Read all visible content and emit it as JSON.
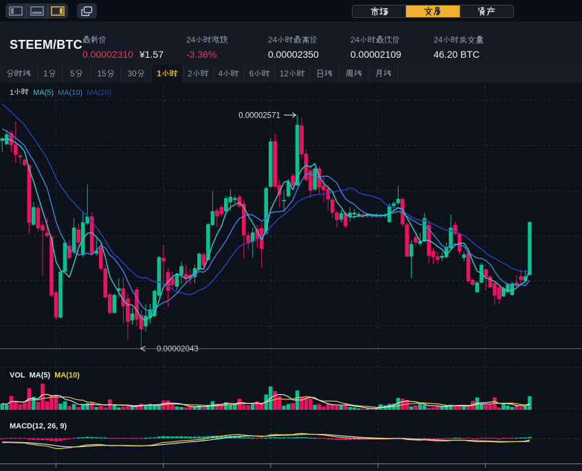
{
  "app": {
    "title": "STEEM/BTC",
    "colors": {
      "up": "#0cbf8d",
      "down": "#ee1160",
      "accent_yellow": "#f0b42c",
      "seg_selected_bg": "#f0b02f",
      "ma5": "#2fc7cd",
      "ma10": "#3e7de0",
      "ma20": "#2443bd",
      "vol_ma5": "#e2e6ef",
      "vol_ma10": "#e6d24a",
      "red_text": "#e8365c"
    }
  },
  "topbar": {
    "layout_buttons": [
      {
        "icon": "layout-left-bar-icon",
        "selected": false
      },
      {
        "icon": "layout-bottom-bar-icon",
        "selected": false
      },
      {
        "icon": "layout-right-bar-icon",
        "selected": true
      }
    ],
    "windows_button_icon": "multi-window-icon",
    "nav_tabs": [
      {
        "label": "市场",
        "selected": false
      },
      {
        "label": "交易",
        "selected": true
      },
      {
        "label": "资产",
        "selected": false
      }
    ]
  },
  "header": {
    "symbol": "STEEM/BTC",
    "stats": [
      {
        "label": "最新价",
        "value": "0.00002310",
        "value2": "¥1.57",
        "color": "red"
      },
      {
        "label": "24小时涨跌",
        "value": "-3.36%",
        "color": "red"
      },
      {
        "label": "24小时最高价",
        "value": "0.00002350",
        "color": "white"
      },
      {
        "label": "24小时最低价",
        "value": "0.00002109",
        "color": "white"
      },
      {
        "label": "24小时成交量",
        "value": "46.20 BTC",
        "color": "white"
      }
    ]
  },
  "timeframes": {
    "items": [
      "分时线",
      "1分",
      "5分",
      "15分",
      "30分",
      "1小时",
      "2小时",
      "4小时",
      "6小时",
      "12小时",
      "日线",
      "周线",
      "月线"
    ],
    "selected": "1小时"
  },
  "chart_data": {
    "type": "candlestick",
    "title": "STEEM/BTC 1小时K线图",
    "interval_label": "1小时",
    "legend_main": {
      "interval": "1小时",
      "ma_labels": [
        "MA(5)",
        "MA(10)",
        "MA(20)"
      ]
    },
    "legend_vol": {
      "vol": "VOL",
      "ma_labels": [
        "MA(5)",
        "MA(10)"
      ]
    },
    "legend_macd": "MACD(12, 26, 9)",
    "annotations": {
      "high_label": "0.00002571",
      "low_label": "0.00002043"
    },
    "price_unit": "1e-8 BTC",
    "price_axis": {
      "min": 2006,
      "max": 2636
    },
    "volume_axis": {
      "min": 0,
      "max": 105
    },
    "grid": true,
    "indicators": {
      "ma": [
        5,
        10,
        20
      ],
      "vol_ma": [
        5,
        10
      ],
      "macd": [
        12,
        26,
        9
      ]
    },
    "prehistory_closes": [
      2700,
      2690,
      2678,
      2666,
      2654,
      2643,
      2633,
      2624,
      2616,
      2609,
      2580,
      2572,
      2564,
      2556,
      2548,
      2516,
      2514,
      2512,
      2512
    ],
    "columns": [
      "open",
      "high",
      "low",
      "close",
      "volume"
    ],
    "candles": [
      [
        2512.1,
        2520.7,
        2487.2,
        2517.6,
        23.7
      ],
      [
        2504.4,
        2536.6,
        2504.4,
        2526.8,
        18.4
      ],
      [
        2528.9,
        2536.1,
        2486.6,
        2502.7,
        52.6
      ],
      [
        2503.6,
        2555.5,
        2461.8,
        2480.4,
        34.2
      ],
      [
        2478.8,
        2485.0,
        2460.2,
        2474.9,
        21.1
      ],
      [
        2469.5,
        2472.6,
        2454.0,
        2457.1,
        26.3
      ],
      [
        2457.1,
        2460.2,
        2302.2,
        2327.0,
        82.9
      ],
      [
        2322.7,
        2374.3,
        2320.8,
        2362.6,
        50.0
      ],
      [
        2361.5,
        2365.7,
        2306.9,
        2314.6,
        30.3
      ],
      [
        2321.7,
        2331.6,
        2207.7,
        2310.0,
        100.0
      ],
      [
        2304.5,
        2338.9,
        2294.5,
        2297.6,
        32.4
      ],
      [
        2296.0,
        2299.1,
        2159.7,
        2162.8,
        55.3
      ],
      [
        2170.5,
        2173.6,
        2107.0,
        2113.2,
        56.6
      ],
      [
        2113.2,
        2220.1,
        2111.7,
        2217.0,
        23.7
      ],
      [
        2217.0,
        2286.7,
        2213.9,
        2282.1,
        32.4
      ],
      [
        2275.3,
        2288.6,
        2244.4,
        2247.4,
        14.5
      ],
      [
        2260.7,
        2338.5,
        2256.2,
        2316.5,
        22.4
      ],
      [
        2312.1,
        2325.3,
        2253.3,
        2282.7,
        10.5
      ],
      [
        2254.8,
        2353.2,
        2250.3,
        2328.2,
        21.1
      ],
      [
        2325.5,
        2413.8,
        2322.4,
        2341.4,
        25.8
      ],
      [
        2341.4,
        2351.8,
        2253.3,
        2257.8,
        26.3
      ],
      [
        2257.8,
        2291.5,
        2253.3,
        2265.0,
        10.5
      ],
      [
        2270.9,
        2279.8,
        2219.5,
        2223.8,
        15.8
      ],
      [
        2224.0,
        2232.8,
        2156.6,
        2158.8,
        9.2
      ],
      [
        2165.6,
        2169.0,
        2120.8,
        2123.6,
        39.5
      ],
      [
        2123.6,
        2167.4,
        2122.5,
        2164.2,
        15.8
      ],
      [
        2173.8,
        2202.3,
        2158.8,
        2179.2,
        9.2
      ],
      [
        2179.2,
        2204.9,
        2099.3,
        2138.5,
        11.8
      ],
      [
        2156.1,
        2167.0,
        2062.4,
        2103.9,
        15.8
      ],
      [
        2107.0,
        2134.9,
        2097.7,
        2122.5,
        13.2
      ],
      [
        2176.7,
        2182.8,
        2092.9,
        2108.6,
        15.8
      ],
      [
        2119.4,
        2130.3,
        2043.2,
        2086.9,
        23.7
      ],
      [
        2093.5,
        2143.3,
        2081.5,
        2117.2,
        19.2
      ],
      [
        2112.3,
        2144.2,
        2100.0,
        2131.8,
        22.4
      ],
      [
        2116.3,
        2176.7,
        2113.2,
        2173.6,
        14.5
      ],
      [
        2162.8,
        2252.6,
        2159.7,
        2249.5,
        21.1
      ],
      [
        2248.0,
        2277.4,
        2178.3,
        2240.2,
        35.5
      ],
      [
        2215.5,
        2224.8,
        2138.0,
        2173.6,
        35.5
      ],
      [
        2203.1,
        2216.5,
        2179.2,
        2186.8,
        19.2
      ],
      [
        2182.9,
        2213.9,
        2175.2,
        2210.8,
        12.6
      ],
      [
        2209.3,
        2240.2,
        2190.7,
        2229.4,
        10.5
      ],
      [
        2211.6,
        2231.6,
        2189.1,
        2203.1,
        9.2
      ],
      [
        2209.3,
        2223.2,
        2186.8,
        2200.0,
        14.5
      ],
      [
        2204.6,
        2232.5,
        2190.7,
        2224.8,
        10.5
      ],
      [
        2221.7,
        2260.4,
        2220.1,
        2257.3,
        15.8
      ],
      [
        2255.7,
        2259.9,
        2220.4,
        2231.0,
        9.2
      ],
      [
        2243.3,
        2327.0,
        2241.8,
        2323.9,
        19.2
      ],
      [
        2322.4,
        2398.3,
        2319.3,
        2353.3,
        32.4
      ],
      [
        2354.9,
        2359.7,
        2318.5,
        2342.2,
        22.4
      ],
      [
        2362.6,
        2367.6,
        2342.2,
        2347.1,
        21.1
      ],
      [
        2353.3,
        2387.6,
        2348.5,
        2382.8,
        28.9
      ],
      [
        2373.5,
        2402.4,
        2353.3,
        2385.9,
        19.2
      ],
      [
        2378.7,
        2389.7,
        2370.7,
        2382.8,
        23.7
      ],
      [
        2385.9,
        2390.5,
        2361.1,
        2364.2,
        42.1
      ],
      [
        2370.4,
        2378.6,
        2247.2,
        2299.1,
        19.2
      ],
      [
        2299.1,
        2306.9,
        2268.1,
        2282.1,
        17.1
      ],
      [
        2283.6,
        2316.9,
        2248.8,
        2305.3,
        22.4
      ],
      [
        2313.1,
        2322.4,
        2271.2,
        2291.4,
        32.4
      ],
      [
        2315.4,
        2327.9,
        2225.1,
        2268.1,
        22.4
      ],
      [
        2302.7,
        2409.1,
        2300.7,
        2405.5,
        58.7
      ],
      [
        2408.3,
        2518.3,
        2406.0,
        2510.6,
        89.5
      ],
      [
        2511.5,
        2528.6,
        2404.6,
        2409.1,
        71.8
      ],
      [
        2412.4,
        2423.5,
        2362.5,
        2389.9,
        52.1
      ],
      [
        2375.8,
        2399.2,
        2351.3,
        2378.7,
        15.8
      ],
      [
        2387.0,
        2426.6,
        2384.9,
        2419.5,
        22.4
      ],
      [
        2433.7,
        2438.9,
        2408.3,
        2411.3,
        25.8
      ],
      [
        2411.6,
        2570.2,
        2409.9,
        2548.4,
        73.7
      ],
      [
        2546.5,
        2564.8,
        2471.1,
        2481.8,
        48.7
      ],
      [
        2483.3,
        2492.5,
        2420.7,
        2423.8,
        47.4
      ],
      [
        2445.2,
        2457.4,
        2384.2,
        2399.5,
        42.1
      ],
      [
        2402.4,
        2452.5,
        2400.6,
        2449.7,
        19.2
      ],
      [
        2449.7,
        2454.3,
        2393.3,
        2407.1,
        22.4
      ],
      [
        2411.6,
        2434.5,
        2373.5,
        2400.9,
        12.6
      ],
      [
        2404.5,
        2412.2,
        2354.9,
        2379.7,
        22.4
      ],
      [
        2379.7,
        2385.9,
        2337.4,
        2350.2,
        21.1
      ],
      [
        2350.2,
        2354.9,
        2316.8,
        2333.2,
        15.8
      ],
      [
        2334.7,
        2356.4,
        2328.6,
        2348.7,
        15.8
      ],
      [
        2348.7,
        2352.6,
        2315.2,
        2319.3,
        19.2
      ],
      [
        2341.7,
        2362.3,
        2328.6,
        2350.2,
        10.5
      ],
      [
        2345.6,
        2358.0,
        2335.8,
        2350.2,
        9.2
      ],
      [
        2344.0,
        2351.8,
        2339.4,
        2347.1,
        5.3
      ],
      [
        2345.6,
        2350.2,
        2337.8,
        2342.5,
        5.3
      ],
      [
        2342.5,
        2348.7,
        2339.4,
        2345.6,
        5.3
      ],
      [
        2344.0,
        2348.7,
        2337.8,
        2340.9,
        5.3
      ],
      [
        2341.7,
        2348.7,
        2338.6,
        2345.6,
        5.3
      ],
      [
        2341.7,
        2347.9,
        2338.6,
        2344.8,
        21.1
      ],
      [
        2342.5,
        2348.7,
        2339.4,
        2345.6,
        17.1
      ],
      [
        2328.6,
        2371.2,
        2327.0,
        2364.2,
        22.4
      ],
      [
        2365.3,
        2375.5,
        2354.9,
        2371.2,
        23.7
      ],
      [
        2371.2,
        2410.2,
        2366.7,
        2381.2,
        45.5
      ],
      [
        2381.2,
        2384.3,
        2317.7,
        2323.9,
        42.1
      ],
      [
        2323.9,
        2327.0,
        2249.5,
        2251.1,
        36.8
      ],
      [
        2251.1,
        2287.7,
        2202.1,
        2279.0,
        12.6
      ],
      [
        2294.5,
        2300.2,
        2274.9,
        2282.8,
        17.1
      ],
      [
        2279.6,
        2305.0,
        2274.9,
        2285.9,
        23.7
      ],
      [
        2285.2,
        2349.3,
        2283.6,
        2337.8,
        19.2
      ],
      [
        2322.4,
        2332.0,
        2235.4,
        2252.6,
        7.9
      ],
      [
        2263.5,
        2270.1,
        2235.4,
        2249.5,
        9.2
      ],
      [
        2251.1,
        2262.2,
        2235.4,
        2243.3,
        13.2
      ],
      [
        2248.0,
        2260.7,
        2240.2,
        2252.6,
        15.0
      ],
      [
        2249.5,
        2282.8,
        2246.4,
        2271.2,
        17.6
      ],
      [
        2269.7,
        2346.1,
        2268.1,
        2316.2,
        19.5
      ],
      [
        2322.4,
        2328.7,
        2299.1,
        2302.2,
        16.3
      ],
      [
        2302.2,
        2305.3,
        2255.9,
        2261.9,
        17.6
      ],
      [
        2248.0,
        2262.2,
        2240.2,
        2255.7,
        15.0
      ],
      [
        2258.8,
        2262.2,
        2191.1,
        2195.3,
        12.9
      ],
      [
        2198.4,
        2201.5,
        2184.5,
        2187.6,
        33.9
      ],
      [
        2170.5,
        2195.3,
        2169.0,
        2192.2,
        47.1
      ],
      [
        2192.2,
        2237.1,
        2190.7,
        2232.5,
        23.9
      ],
      [
        2221.7,
        2224.8,
        2175.8,
        2204.6,
        19.5
      ],
      [
        2206.2,
        2209.3,
        2179.8,
        2181.4,
        22.6
      ],
      [
        2190.7,
        2193.8,
        2142.6,
        2162.8,
        47.6
      ],
      [
        2181.4,
        2184.5,
        2143.6,
        2155.0,
        8.4
      ],
      [
        2161.2,
        2182.9,
        2159.7,
        2179.8,
        22.6
      ],
      [
        2170.5,
        2192.2,
        2169.0,
        2189.1,
        16.3
      ],
      [
        2164.3,
        2193.8,
        2162.8,
        2190.7,
        11.1
      ],
      [
        2192.8,
        2209.7,
        2179.2,
        2184.5,
        19.5
      ],
      [
        2206.2,
        2221.7,
        2187.6,
        2198.4,
        11.1
      ],
      [
        2196.1,
        2220.1,
        2192.8,
        2206.2,
        12.9
      ],
      [
        2209.3,
        2330.9,
        2207.7,
        2328.6,
        52.1
      ]
    ]
  }
}
